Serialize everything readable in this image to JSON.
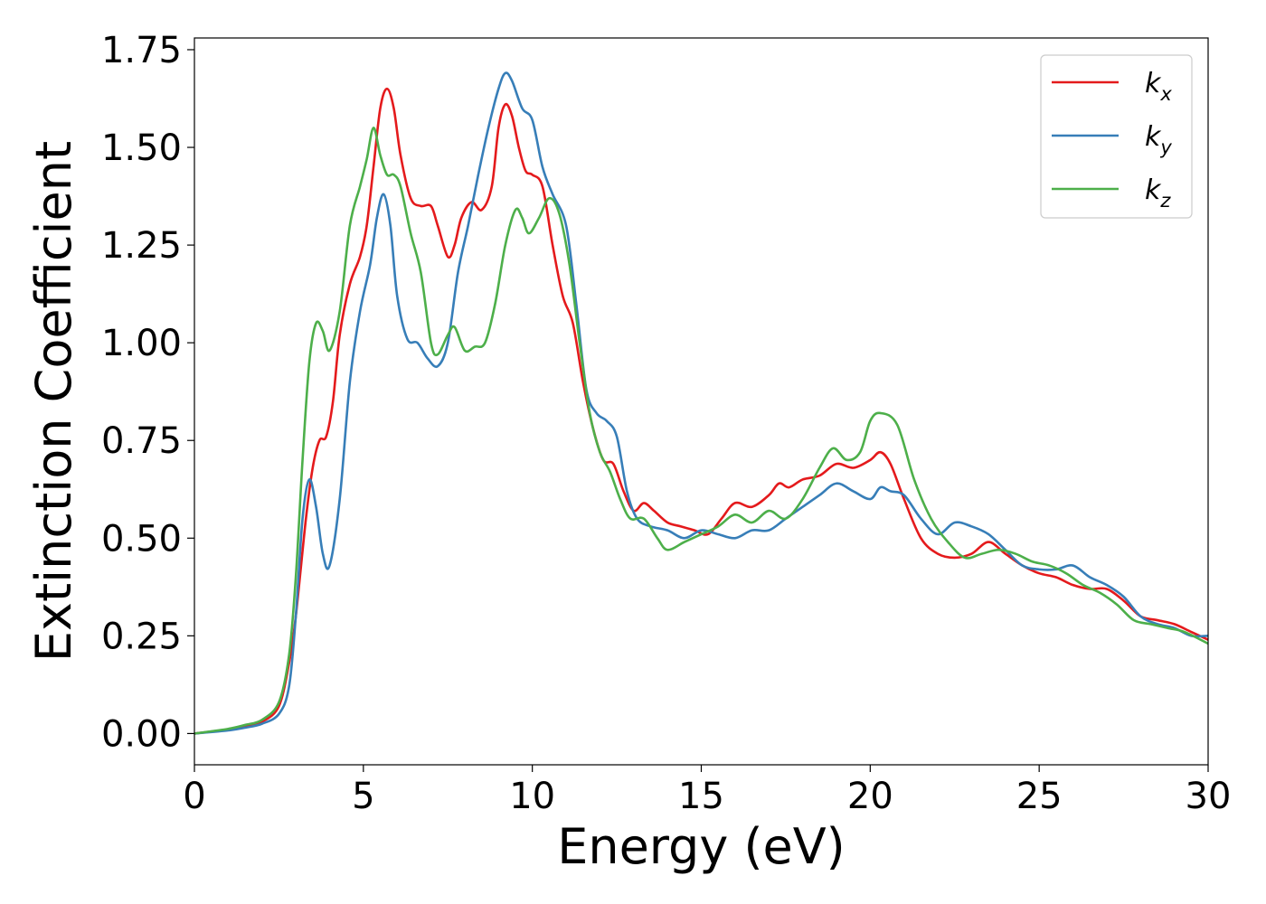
{
  "chart_data": {
    "type": "line",
    "xlabel": "Energy (eV)",
    "ylabel": "Extinction Coefficient",
    "xlim": [
      0,
      30
    ],
    "ylim": [
      -0.08,
      1.78
    ],
    "x_ticks": [
      "0",
      "5",
      "10",
      "15",
      "20",
      "25",
      "30"
    ],
    "y_ticks": [
      "0.00",
      "0.25",
      "0.50",
      "0.75",
      "1.00",
      "1.25",
      "1.50",
      "1.75"
    ],
    "grid": false,
    "legend_position": "top-right",
    "series": [
      {
        "name": "k",
        "subscript": "x",
        "color": "#e41a1c",
        "points": [
          [
            0,
            0
          ],
          [
            1,
            0.01
          ],
          [
            1.5,
            0.018
          ],
          [
            2,
            0.03
          ],
          [
            2.5,
            0.07
          ],
          [
            2.8,
            0.18
          ],
          [
            3,
            0.3
          ],
          [
            3.3,
            0.55
          ],
          [
            3.5,
            0.68
          ],
          [
            3.7,
            0.75
          ],
          [
            3.9,
            0.76
          ],
          [
            4.1,
            0.85
          ],
          [
            4.3,
            1.02
          ],
          [
            4.6,
            1.15
          ],
          [
            4.9,
            1.22
          ],
          [
            5.1,
            1.3
          ],
          [
            5.3,
            1.45
          ],
          [
            5.5,
            1.6
          ],
          [
            5.7,
            1.65
          ],
          [
            5.9,
            1.6
          ],
          [
            6.1,
            1.48
          ],
          [
            6.4,
            1.37
          ],
          [
            6.7,
            1.35
          ],
          [
            7,
            1.35
          ],
          [
            7.2,
            1.3
          ],
          [
            7.5,
            1.22
          ],
          [
            7.7,
            1.25
          ],
          [
            7.9,
            1.32
          ],
          [
            8.2,
            1.36
          ],
          [
            8.5,
            1.34
          ],
          [
            8.8,
            1.4
          ],
          [
            9,
            1.55
          ],
          [
            9.2,
            1.61
          ],
          [
            9.4,
            1.58
          ],
          [
            9.6,
            1.5
          ],
          [
            9.8,
            1.44
          ],
          [
            10,
            1.43
          ],
          [
            10.3,
            1.4
          ],
          [
            10.6,
            1.25
          ],
          [
            10.9,
            1.12
          ],
          [
            11.2,
            1.05
          ],
          [
            11.5,
            0.9
          ],
          [
            11.8,
            0.78
          ],
          [
            12.1,
            0.7
          ],
          [
            12.4,
            0.69
          ],
          [
            12.7,
            0.62
          ],
          [
            13,
            0.57
          ],
          [
            13.3,
            0.59
          ],
          [
            13.6,
            0.57
          ],
          [
            14,
            0.54
          ],
          [
            14.4,
            0.53
          ],
          [
            14.8,
            0.52
          ],
          [
            15.2,
            0.51
          ],
          [
            15.6,
            0.55
          ],
          [
            16,
            0.59
          ],
          [
            16.5,
            0.58
          ],
          [
            17,
            0.61
          ],
          [
            17.3,
            0.64
          ],
          [
            17.6,
            0.63
          ],
          [
            18,
            0.65
          ],
          [
            18.5,
            0.66
          ],
          [
            19,
            0.69
          ],
          [
            19.5,
            0.68
          ],
          [
            20,
            0.7
          ],
          [
            20.3,
            0.72
          ],
          [
            20.6,
            0.69
          ],
          [
            21,
            0.6
          ],
          [
            21.5,
            0.5
          ],
          [
            22,
            0.46
          ],
          [
            22.5,
            0.45
          ],
          [
            23,
            0.46
          ],
          [
            23.5,
            0.49
          ],
          [
            24,
            0.46
          ],
          [
            24.5,
            0.43
          ],
          [
            25,
            0.41
          ],
          [
            25.5,
            0.4
          ],
          [
            26,
            0.38
          ],
          [
            26.5,
            0.37
          ],
          [
            27,
            0.37
          ],
          [
            27.5,
            0.34
          ],
          [
            28,
            0.3
          ],
          [
            28.5,
            0.29
          ],
          [
            29,
            0.28
          ],
          [
            29.5,
            0.26
          ],
          [
            30,
            0.24
          ]
        ]
      },
      {
        "name": "k",
        "subscript": "y",
        "color": "#377eb8",
        "points": [
          [
            0,
            0
          ],
          [
            1,
            0.008
          ],
          [
            1.5,
            0.015
          ],
          [
            2,
            0.025
          ],
          [
            2.5,
            0.05
          ],
          [
            2.8,
            0.12
          ],
          [
            3,
            0.3
          ],
          [
            3.2,
            0.55
          ],
          [
            3.4,
            0.65
          ],
          [
            3.6,
            0.58
          ],
          [
            3.8,
            0.46
          ],
          [
            4,
            0.43
          ],
          [
            4.3,
            0.6
          ],
          [
            4.6,
            0.9
          ],
          [
            4.9,
            1.08
          ],
          [
            5.2,
            1.2
          ],
          [
            5.4,
            1.32
          ],
          [
            5.6,
            1.38
          ],
          [
            5.8,
            1.3
          ],
          [
            6,
            1.12
          ],
          [
            6.3,
            1.01
          ],
          [
            6.6,
            1.0
          ],
          [
            6.9,
            0.96
          ],
          [
            7.2,
            0.94
          ],
          [
            7.5,
            1.0
          ],
          [
            7.8,
            1.18
          ],
          [
            8.1,
            1.3
          ],
          [
            8.4,
            1.43
          ],
          [
            8.7,
            1.55
          ],
          [
            9,
            1.65
          ],
          [
            9.2,
            1.69
          ],
          [
            9.4,
            1.67
          ],
          [
            9.7,
            1.6
          ],
          [
            10,
            1.57
          ],
          [
            10.3,
            1.45
          ],
          [
            10.6,
            1.38
          ],
          [
            11,
            1.3
          ],
          [
            11.3,
            1.1
          ],
          [
            11.6,
            0.88
          ],
          [
            11.9,
            0.82
          ],
          [
            12.2,
            0.8
          ],
          [
            12.5,
            0.76
          ],
          [
            12.8,
            0.62
          ],
          [
            13.1,
            0.55
          ],
          [
            13.5,
            0.53
          ],
          [
            14,
            0.52
          ],
          [
            14.5,
            0.5
          ],
          [
            15,
            0.52
          ],
          [
            15.5,
            0.51
          ],
          [
            16,
            0.5
          ],
          [
            16.5,
            0.52
          ],
          [
            17,
            0.52
          ],
          [
            17.5,
            0.55
          ],
          [
            18,
            0.58
          ],
          [
            18.5,
            0.61
          ],
          [
            19,
            0.64
          ],
          [
            19.5,
            0.62
          ],
          [
            20,
            0.6
          ],
          [
            20.3,
            0.63
          ],
          [
            20.6,
            0.62
          ],
          [
            21,
            0.61
          ],
          [
            21.5,
            0.55
          ],
          [
            22,
            0.51
          ],
          [
            22.5,
            0.54
          ],
          [
            23,
            0.53
          ],
          [
            23.5,
            0.51
          ],
          [
            24,
            0.47
          ],
          [
            24.5,
            0.43
          ],
          [
            25,
            0.42
          ],
          [
            25.5,
            0.42
          ],
          [
            26,
            0.43
          ],
          [
            26.5,
            0.4
          ],
          [
            27,
            0.38
          ],
          [
            27.5,
            0.35
          ],
          [
            28,
            0.3
          ],
          [
            28.5,
            0.28
          ],
          [
            29,
            0.27
          ],
          [
            29.5,
            0.25
          ],
          [
            30,
            0.25
          ]
        ]
      },
      {
        "name": "k",
        "subscript": "z",
        "color": "#4daf4a",
        "points": [
          [
            0,
            0
          ],
          [
            1,
            0.012
          ],
          [
            1.5,
            0.022
          ],
          [
            2,
            0.035
          ],
          [
            2.5,
            0.08
          ],
          [
            2.8,
            0.2
          ],
          [
            3,
            0.4
          ],
          [
            3.2,
            0.7
          ],
          [
            3.4,
            0.95
          ],
          [
            3.6,
            1.05
          ],
          [
            3.8,
            1.03
          ],
          [
            4,
            0.98
          ],
          [
            4.3,
            1.08
          ],
          [
            4.6,
            1.3
          ],
          [
            4.9,
            1.4
          ],
          [
            5.1,
            1.47
          ],
          [
            5.3,
            1.55
          ],
          [
            5.5,
            1.48
          ],
          [
            5.7,
            1.43
          ],
          [
            5.9,
            1.43
          ],
          [
            6.1,
            1.4
          ],
          [
            6.4,
            1.28
          ],
          [
            6.7,
            1.18
          ],
          [
            7,
            1.0
          ],
          [
            7.2,
            0.97
          ],
          [
            7.5,
            1.02
          ],
          [
            7.7,
            1.04
          ],
          [
            8,
            0.98
          ],
          [
            8.3,
            0.99
          ],
          [
            8.6,
            1.0
          ],
          [
            8.9,
            1.1
          ],
          [
            9.2,
            1.25
          ],
          [
            9.5,
            1.34
          ],
          [
            9.7,
            1.32
          ],
          [
            9.9,
            1.28
          ],
          [
            10.2,
            1.32
          ],
          [
            10.5,
            1.37
          ],
          [
            10.8,
            1.33
          ],
          [
            11.1,
            1.2
          ],
          [
            11.4,
            1.0
          ],
          [
            11.7,
            0.82
          ],
          [
            12,
            0.72
          ],
          [
            12.3,
            0.67
          ],
          [
            12.6,
            0.6
          ],
          [
            12.9,
            0.55
          ],
          [
            13.3,
            0.55
          ],
          [
            13.7,
            0.5
          ],
          [
            14,
            0.47
          ],
          [
            14.5,
            0.49
          ],
          [
            15,
            0.51
          ],
          [
            15.5,
            0.53
          ],
          [
            16,
            0.56
          ],
          [
            16.5,
            0.54
          ],
          [
            17,
            0.57
          ],
          [
            17.5,
            0.55
          ],
          [
            18,
            0.6
          ],
          [
            18.5,
            0.68
          ],
          [
            18.9,
            0.73
          ],
          [
            19.3,
            0.7
          ],
          [
            19.7,
            0.72
          ],
          [
            20,
            0.8
          ],
          [
            20.3,
            0.82
          ],
          [
            20.8,
            0.79
          ],
          [
            21.3,
            0.65
          ],
          [
            21.8,
            0.55
          ],
          [
            22.3,
            0.49
          ],
          [
            22.8,
            0.45
          ],
          [
            23.3,
            0.46
          ],
          [
            23.8,
            0.47
          ],
          [
            24.3,
            0.46
          ],
          [
            24.8,
            0.44
          ],
          [
            25.3,
            0.43
          ],
          [
            25.8,
            0.41
          ],
          [
            26.3,
            0.38
          ],
          [
            26.8,
            0.36
          ],
          [
            27.3,
            0.33
          ],
          [
            27.8,
            0.29
          ],
          [
            28.3,
            0.28
          ],
          [
            28.8,
            0.27
          ],
          [
            29.3,
            0.26
          ],
          [
            30,
            0.23
          ]
        ]
      }
    ]
  }
}
